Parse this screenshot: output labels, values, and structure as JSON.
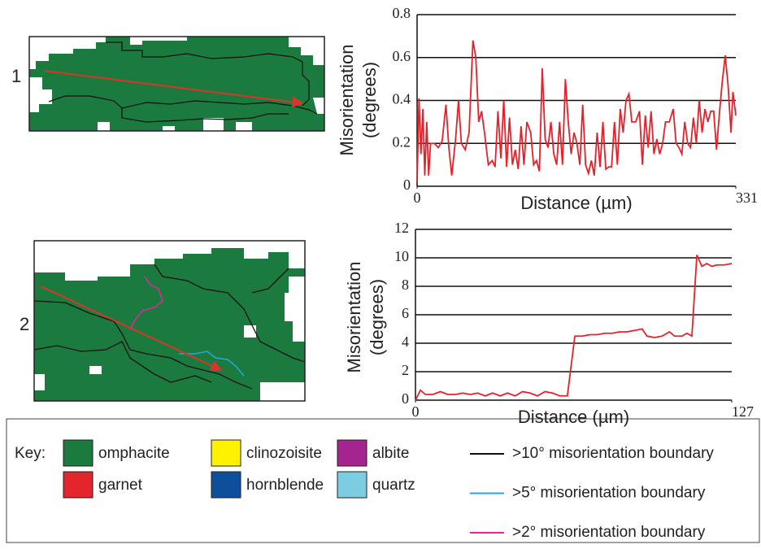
{
  "panels": [
    "1",
    "2"
  ],
  "chart_data": [
    {
      "type": "line",
      "xlabel": "Distance (µm)",
      "ylabel": [
        "Misorientation",
        "(degrees)"
      ],
      "color": "#e8202a",
      "grid": true,
      "xlim": [
        0,
        331
      ],
      "xticks": [
        0,
        331
      ],
      "ylim": [
        0,
        0.8
      ],
      "yticks": [
        0,
        0.2,
        0.4,
        0.6,
        0.8
      ],
      "x": [
        0,
        2,
        4,
        6,
        8,
        10,
        12,
        14,
        18,
        22,
        26,
        30,
        33,
        36,
        40,
        43,
        46,
        50,
        54,
        58,
        61,
        64,
        67,
        70,
        74,
        78,
        81,
        84,
        87,
        90,
        93,
        96,
        99,
        102,
        105,
        108,
        111,
        114,
        118,
        121,
        124,
        127,
        130,
        133,
        136,
        139,
        142,
        145,
        148,
        151,
        154,
        157,
        160,
        163,
        166,
        169,
        172,
        175,
        178,
        181,
        184,
        187,
        190,
        193,
        196,
        199,
        202,
        205,
        208,
        211,
        214,
        217,
        220,
        223,
        227,
        231,
        234,
        237,
        240,
        243,
        246,
        249,
        252,
        255,
        258,
        262,
        266,
        269,
        272,
        275,
        278,
        281,
        284,
        287,
        290,
        293,
        296,
        299,
        302,
        305,
        308,
        311,
        314,
        317,
        320,
        323,
        326,
        328,
        331
      ],
      "values": [
        0.02,
        0.41,
        0.15,
        0.36,
        0.05,
        0.3,
        0.05,
        0.2,
        0.2,
        0.18,
        0.21,
        0.38,
        0.18,
        0.05,
        0.22,
        0.4,
        0.2,
        0.17,
        0.25,
        0.68,
        0.6,
        0.3,
        0.35,
        0.25,
        0.1,
        0.12,
        0.09,
        0.35,
        0.13,
        0.4,
        0.09,
        0.32,
        0.1,
        0.17,
        0.08,
        0.28,
        0.1,
        0.3,
        0.25,
        0.1,
        0.12,
        0.07,
        0.55,
        0.22,
        0.18,
        0.3,
        0.15,
        0.1,
        0.3,
        0.1,
        0.5,
        0.3,
        0.15,
        0.25,
        0.2,
        0.1,
        0.38,
        0.1,
        0.06,
        0.12,
        0.05,
        0.25,
        0.09,
        0.3,
        0.08,
        0.09,
        0.09,
        0.3,
        0.1,
        0.36,
        0.25,
        0.4,
        0.43,
        0.3,
        0.3,
        0.35,
        0.1,
        0.33,
        0.18,
        0.35,
        0.15,
        0.22,
        0.15,
        0.2,
        0.3,
        0.3,
        0.36,
        0.2,
        0.18,
        0.15,
        0.3,
        0.2,
        0.18,
        0.32,
        0.2,
        0.4,
        0.25,
        0.36,
        0.3,
        0.35,
        0.35,
        0.17,
        0.34,
        0.49,
        0.61,
        0.47,
        0.25,
        0.44,
        0.33
      ]
    },
    {
      "type": "line",
      "xlabel": "Distance (µm)",
      "ylabel": [
        "Misorientation",
        "(degrees)"
      ],
      "color": "#e8202a",
      "grid": true,
      "xlim": [
        0,
        127
      ],
      "xticks": [
        0,
        127
      ],
      "ylim": [
        0,
        12
      ],
      "yticks": [
        0,
        2,
        4,
        6,
        8,
        10,
        12
      ],
      "x": [
        0,
        2,
        4,
        7,
        10,
        13,
        16,
        19,
        22,
        25,
        28,
        31,
        34,
        37,
        40,
        43,
        46,
        49,
        52,
        55,
        58,
        61,
        64,
        67,
        70,
        73,
        76,
        79,
        82,
        85,
        88,
        91,
        93,
        96,
        99,
        102,
        104,
        107,
        109,
        111,
        113,
        115,
        117,
        119,
        121,
        124,
        127
      ],
      "values": [
        0,
        0.7,
        0.4,
        0.4,
        0.6,
        0.4,
        0.4,
        0.5,
        0.4,
        0.5,
        0.3,
        0.5,
        0.3,
        0.5,
        0.3,
        0.6,
        0.5,
        0.3,
        0.6,
        0.5,
        0.3,
        0.3,
        4.5,
        4.5,
        4.6,
        4.6,
        4.7,
        4.7,
        4.8,
        4.8,
        4.9,
        5.0,
        4.5,
        4.4,
        4.5,
        4.8,
        4.5,
        4.5,
        4.7,
        4.5,
        10.2,
        9.4,
        9.6,
        9.4,
        9.5,
        9.5,
        9.6
      ]
    }
  ],
  "key": {
    "title": "Key:",
    "minerals": [
      {
        "name": "omphacite",
        "color": "#1b7b3e"
      },
      {
        "name": "garnet",
        "color": "#e3262b"
      },
      {
        "name": "clinozoisite",
        "color": "#fff200"
      },
      {
        "name": "hornblende",
        "color": "#0d4f9a"
      },
      {
        "name": "albite",
        "color": "#a6248e"
      },
      {
        "name": "quartz",
        "color": "#7dcde2"
      }
    ],
    "boundaries": [
      {
        "label": ">10° misorientation boundary",
        "color": "#111111"
      },
      {
        "label": ">5° misorientation boundary",
        "color": "#27a6df"
      },
      {
        "label": ">2° misorientation boundary",
        "color": "#e0289b"
      }
    ]
  }
}
